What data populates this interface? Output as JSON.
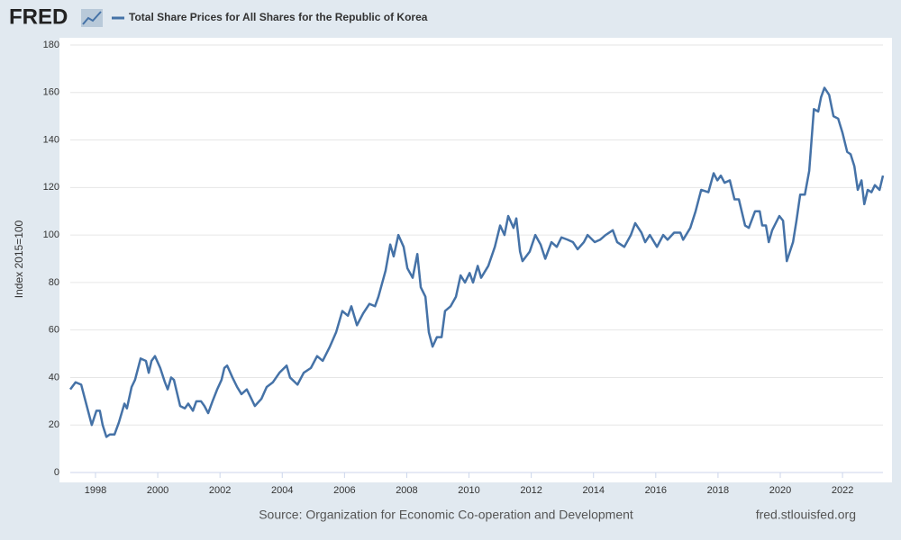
{
  "logo": "FRED",
  "source": "Source: Organization for Economic Co-operation and Development",
  "url": "fred.stlouisfed.org",
  "chart_data": {
    "type": "line",
    "ylabel": "Index 2015=100",
    "x": [
      1997.19,
      1997.36,
      1997.54,
      1997.68,
      1997.88,
      1998.03,
      1998.14,
      1998.23,
      1998.35,
      1998.46,
      1998.61,
      1998.75,
      1998.93,
      1999.01,
      1999.16,
      1999.27,
      1999.45,
      1999.62,
      1999.71,
      1999.8,
      1999.91,
      2000.08,
      2000.23,
      2000.32,
      2000.43,
      2000.52,
      2000.72,
      2000.87,
      2000.98,
      2001.13,
      2001.24,
      2001.39,
      2001.5,
      2001.62,
      2001.76,
      2001.91,
      2002.05,
      2002.14,
      2002.23,
      2002.4,
      2002.55,
      2002.69,
      2002.86,
      2003.01,
      2003.12,
      2003.33,
      2003.5,
      2003.7,
      2003.91,
      2004.14,
      2004.25,
      2004.49,
      2004.69,
      2004.92,
      2005.12,
      2005.3,
      2005.53,
      2005.73,
      2005.93,
      2006.11,
      2006.22,
      2006.4,
      2006.6,
      2006.8,
      2006.98,
      2007.09,
      2007.32,
      2007.47,
      2007.58,
      2007.73,
      2007.9,
      2008.02,
      2008.19,
      2008.34,
      2008.45,
      2008.6,
      2008.71,
      2008.83,
      2008.97,
      2009.12,
      2009.23,
      2009.41,
      2009.58,
      2009.73,
      2009.87,
      2010.02,
      2010.13,
      2010.28,
      2010.39,
      2010.62,
      2010.83,
      2011.0,
      2011.14,
      2011.26,
      2011.43,
      2011.52,
      2011.64,
      2011.72,
      2011.95,
      2012.13,
      2012.3,
      2012.45,
      2012.65,
      2012.82,
      2012.97,
      2013.17,
      2013.34,
      2013.49,
      2013.69,
      2013.81,
      2014.04,
      2014.21,
      2014.39,
      2014.62,
      2014.76,
      2014.99,
      2015.2,
      2015.34,
      2015.54,
      2015.66,
      2015.81,
      2016.04,
      2016.24,
      2016.38,
      2016.59,
      2016.79,
      2016.88,
      2017.11,
      2017.28,
      2017.46,
      2017.69,
      2017.86,
      2017.98,
      2018.09,
      2018.21,
      2018.38,
      2018.53,
      2018.67,
      2018.87,
      2018.99,
      2019.19,
      2019.34,
      2019.42,
      2019.54,
      2019.63,
      2019.74,
      2019.97,
      2020.09,
      2020.21,
      2020.41,
      2020.52,
      2020.64,
      2020.79,
      2020.93,
      2021.08,
      2021.22,
      2021.31,
      2021.42,
      2021.57,
      2021.71,
      2021.86,
      2022.0,
      2022.15,
      2022.26,
      2022.38,
      2022.49,
      2022.61,
      2022.7,
      2022.81,
      2022.93,
      2023.04,
      2023.19,
      2023.3
    ],
    "series": [
      {
        "name": "Total Share Prices for All Shares for the Republic of Korea",
        "color": "#4572a7",
        "values": [
          35,
          38,
          37,
          30,
          20,
          26,
          26,
          20,
          15,
          16,
          16,
          21,
          29,
          27,
          36,
          39,
          48,
          47,
          42,
          47,
          49,
          44,
          38,
          35,
          40,
          39,
          28,
          27,
          29,
          26,
          30,
          30,
          28,
          25,
          30,
          35,
          39,
          44,
          45,
          40,
          36,
          33,
          35,
          31,
          28,
          31,
          36,
          38,
          42,
          45,
          40,
          37,
          42,
          44,
          49,
          47,
          53,
          59,
          68,
          66,
          70,
          62,
          67,
          71,
          70,
          74,
          85,
          96,
          91,
          100,
          95,
          86,
          82,
          92,
          78,
          74,
          59,
          53,
          57,
          57,
          68,
          70,
          74,
          83,
          80,
          84,
          80,
          87,
          82,
          87,
          95,
          104,
          100,
          108,
          103,
          107,
          93,
          89,
          93,
          100,
          96,
          90,
          97,
          95,
          99,
          98,
          97,
          94,
          97,
          100,
          97,
          98,
          100,
          102,
          97,
          95,
          100,
          105,
          101,
          97,
          100,
          95,
          100,
          98,
          101,
          101,
          98,
          103,
          110,
          119,
          118,
          126,
          123,
          125,
          122,
          123,
          115,
          115,
          104,
          103,
          110,
          110,
          104,
          104,
          97,
          102,
          108,
          106,
          89,
          97,
          106,
          117,
          117,
          127,
          153,
          152,
          158,
          162,
          159,
          150,
          149,
          143,
          135,
          134,
          129,
          119,
          123,
          113,
          119,
          118,
          121,
          119,
          125
        ]
      }
    ],
    "xlim": [
      1997.19,
      2023.3
    ],
    "xticks": [
      1998,
      2000,
      2002,
      2004,
      2006,
      2008,
      2010,
      2012,
      2014,
      2016,
      2018,
      2020,
      2022
    ],
    "ylim": [
      0,
      180
    ],
    "yticks": [
      0,
      20,
      40,
      60,
      80,
      100,
      120,
      140,
      160,
      180
    ],
    "grid": true
  }
}
